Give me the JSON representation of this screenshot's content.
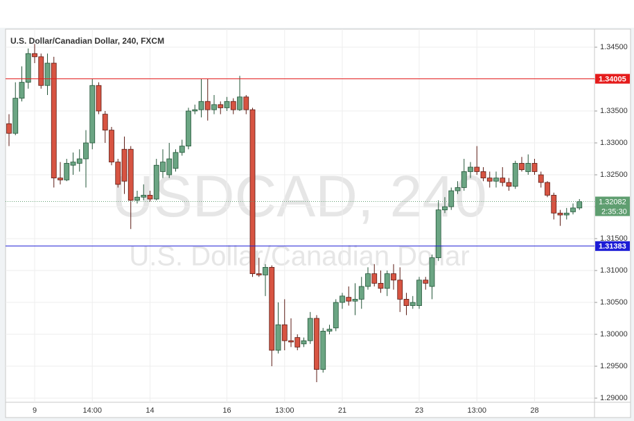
{
  "chart_data": {
    "type": "candlestick",
    "title": "U.S. Dollar/Canadian Dollar, 240, FXCM",
    "watermark": {
      "symbol": "USDCAD, 240",
      "name": "U.S. Dollar/Canadian Dollar"
    },
    "categories": [
      null,
      null,
      null,
      null,
      "9",
      null,
      null,
      null,
      null,
      null,
      null,
      null,
      null,
      "14:00",
      null,
      null,
      null,
      null,
      null,
      null,
      null,
      null,
      "14",
      null,
      null,
      null,
      null,
      null,
      null,
      null,
      null,
      null,
      null,
      null,
      "16",
      null,
      null,
      null,
      null,
      null,
      null,
      null,
      null,
      "13:00",
      null,
      null,
      null,
      null,
      null,
      null,
      null,
      null,
      "21",
      null,
      null,
      null,
      null,
      null,
      null,
      null,
      null,
      null,
      null,
      null,
      "23",
      null,
      null,
      null,
      null,
      null,
      null,
      null,
      null,
      "13:00",
      null,
      null,
      null,
      null,
      null,
      null,
      null,
      null,
      "28",
      null,
      null,
      null,
      null,
      null,
      null,
      null
    ],
    "open": [
      1.333,
      1.3315,
      1.337,
      1.3395,
      1.344,
      1.3435,
      1.339,
      1.3425,
      1.3245,
      1.3242,
      1.3265,
      1.3268,
      1.3275,
      1.33,
      1.339,
      1.3345,
      1.332,
      1.327,
      1.329,
      1.329,
      1.321,
      1.3215,
      1.3218,
      1.3212,
      1.3255,
      1.325,
      1.326,
      1.3285,
      1.3295,
      1.335,
      1.3352,
      1.3365,
      1.3352,
      1.336,
      1.3355,
      1.3365,
      1.3352,
      1.3372,
      1.3352,
      1.3095,
      1.3093,
      1.3105,
      1.2975,
      1.3015,
      1.299,
      1.2995,
      1.2985,
      1.299,
      1.3025,
      1.2945,
      1.3005,
      1.301,
      1.305,
      1.3058,
      1.3052,
      1.3055,
      1.3075,
      1.3095,
      1.308,
      1.3072,
      1.3095,
      1.3085,
      1.3055,
      1.3045,
      1.3045,
      1.3085,
      1.3075,
      1.312,
      1.3195,
      1.32,
      1.3225,
      1.323,
      1.3255,
      1.3262,
      1.3255,
      1.3245,
      1.324,
      1.3245,
      1.3238,
      1.3232,
      1.3268,
      1.3255,
      1.3268,
      1.325,
      1.3238,
      1.3218,
      1.319,
      1.3187,
      1.3192,
      1.3198
    ],
    "high": [
      1.3345,
      1.3395,
      1.342,
      1.3448,
      1.3455,
      1.344,
      1.344,
      1.3435,
      1.327,
      1.3275,
      1.3285,
      1.329,
      1.332,
      1.34,
      1.3395,
      1.335,
      1.3325,
      1.3275,
      1.331,
      1.3295,
      1.3225,
      1.3235,
      1.3225,
      1.3275,
      1.329,
      1.33,
      1.329,
      1.3305,
      1.3355,
      1.336,
      1.34,
      1.34,
      1.3375,
      1.3365,
      1.3372,
      1.337,
      1.3405,
      1.3375,
      1.3355,
      1.312,
      1.311,
      1.3108,
      1.305,
      1.3055,
      1.3025,
      1.3,
      1.2995,
      1.3035,
      1.303,
      1.301,
      1.3015,
      1.3055,
      1.3065,
      1.3075,
      1.308,
      1.309,
      1.3105,
      1.311,
      1.31,
      1.31,
      1.311,
      1.3105,
      1.3065,
      1.306,
      1.309,
      1.309,
      1.3125,
      1.321,
      1.3215,
      1.323,
      1.324,
      1.3275,
      1.327,
      1.3295,
      1.3262,
      1.3255,
      1.3255,
      1.3262,
      1.3245,
      1.3272,
      1.3278,
      1.3282,
      1.3275,
      1.3255,
      1.324,
      1.3222,
      1.3195,
      1.3198,
      1.3205,
      1.3212
    ],
    "low": [
      1.3295,
      1.3312,
      1.3365,
      1.3385,
      1.3425,
      1.3385,
      1.3375,
      1.323,
      1.3235,
      1.324,
      1.325,
      1.3255,
      1.323,
      1.329,
      1.3345,
      1.33,
      1.3265,
      1.323,
      1.322,
      1.3165,
      1.3205,
      1.321,
      1.3208,
      1.321,
      1.3245,
      1.3245,
      1.3255,
      1.328,
      1.329,
      1.3345,
      1.334,
      1.3335,
      1.3345,
      1.3345,
      1.335,
      1.3345,
      1.335,
      1.3345,
      1.309,
      1.309,
      1.306,
      1.295,
      1.297,
      1.2975,
      1.298,
      1.2975,
      1.298,
      1.2985,
      1.2925,
      1.294,
      1.3,
      1.3005,
      1.304,
      1.3045,
      1.303,
      1.304,
      1.307,
      1.3075,
      1.3065,
      1.306,
      1.307,
      1.3035,
      1.303,
      1.304,
      1.304,
      1.307,
      1.3055,
      1.3115,
      1.319,
      1.3195,
      1.322,
      1.3225,
      1.3245,
      1.325,
      1.324,
      1.323,
      1.323,
      1.3232,
      1.3225,
      1.3228,
      1.3255,
      1.325,
      1.325,
      1.323,
      1.3215,
      1.318,
      1.317,
      1.318,
      1.3188,
      1.3195
    ],
    "close": [
      1.3315,
      1.337,
      1.3395,
      1.344,
      1.3435,
      1.339,
      1.3425,
      1.3245,
      1.3242,
      1.3268,
      1.327,
      1.3275,
      1.33,
      1.339,
      1.335,
      1.332,
      1.327,
      1.3235,
      1.324,
      1.321,
      1.3215,
      1.3218,
      1.3212,
      1.3265,
      1.327,
      1.3275,
      1.3285,
      1.3295,
      1.335,
      1.3352,
      1.3365,
      1.3352,
      1.336,
      1.3355,
      1.3365,
      1.3352,
      1.3372,
      1.3352,
      1.3095,
      1.3093,
      1.3105,
      1.2975,
      1.3015,
      1.299,
      1.2988,
      1.298,
      1.299,
      1.3025,
      1.2945,
      1.3005,
      1.3008,
      1.305,
      1.306,
      1.3052,
      1.3055,
      1.3075,
      1.3095,
      1.308,
      1.3072,
      1.3095,
      1.3085,
      1.3055,
      1.3045,
      1.305,
      1.3085,
      1.308,
      1.312,
      1.3195,
      1.32,
      1.3225,
      1.323,
      1.3255,
      1.3262,
      1.3255,
      1.3245,
      1.324,
      1.3245,
      1.3238,
      1.3232,
      1.3268,
      1.3258,
      1.3268,
      1.3255,
      1.3238,
      1.3218,
      1.319,
      1.3187,
      1.319,
      1.3198,
      1.3208
    ],
    "up_color": "#6ba583",
    "down_color": "#d75442",
    "ylim": [
      1.28935,
      1.34783
    ],
    "yticks": [
      {
        "value": 1.29,
        "label": "1.29000"
      },
      {
        "value": 1.295,
        "label": "1.29500"
      },
      {
        "value": 1.3,
        "label": "1.30000"
      },
      {
        "value": 1.305,
        "label": "1.30500"
      },
      {
        "value": 1.31,
        "label": "1.31000"
      },
      {
        "value": 1.315,
        "label": "1.31500"
      },
      {
        "value": 1.32,
        "label": "1.32000"
      },
      {
        "value": 1.325,
        "label": "1.32500"
      },
      {
        "value": 1.33,
        "label": "1.33000"
      },
      {
        "value": 1.335,
        "label": "1.33500"
      },
      {
        "value": 1.34,
        "label": "1.34000"
      },
      {
        "value": 1.345,
        "label": "1.34500"
      }
    ],
    "grid": true,
    "lines": [
      {
        "value": 1.34005,
        "color": "#e51c1c"
      },
      {
        "value": 1.31383,
        "color": "#1c1cd6"
      }
    ],
    "current": {
      "value": 1.32082,
      "countdown": "2:35:30",
      "color": "#5f9e70"
    }
  }
}
